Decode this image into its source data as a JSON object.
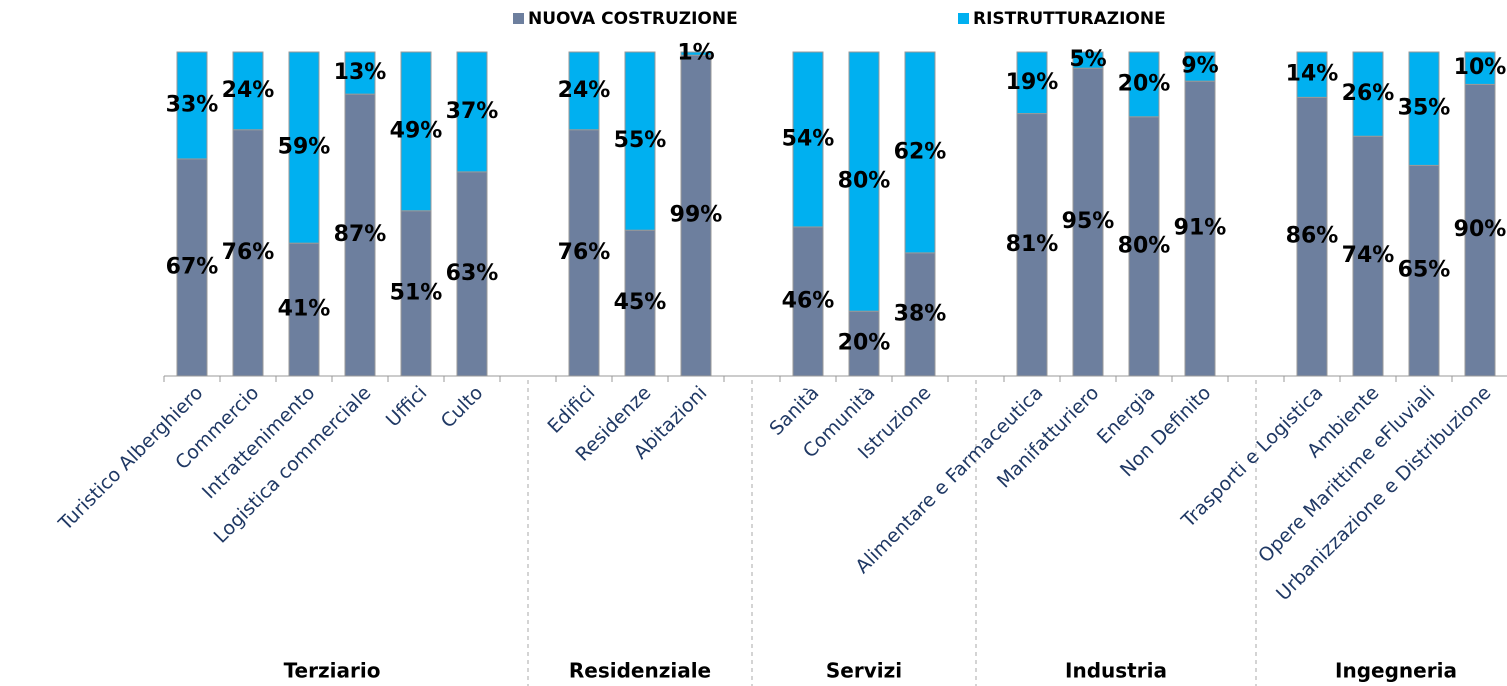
{
  "chart_data": {
    "type": "stacked_bar_100",
    "categories": [
      "Turistico Alberghiero",
      "Commercio",
      "Intrattenimento",
      "Logistica commerciale",
      "Uffici",
      "Culto",
      null,
      "Edifici",
      "Residenze",
      "Abitazioni",
      null,
      "Sanità",
      "Comunità",
      "Istruzione",
      null,
      "Alimentare e Farmaceutica",
      "Manifatturiero",
      "Energia",
      "Non Definito",
      null,
      "Trasporti e Logistica",
      "Ambiente",
      "Opere Marittime eFluviali",
      "Urbanizzazione e Distribuzione"
    ],
    "groups": [
      "Terziario",
      "Residenziale",
      "Servizi",
      "Industria",
      "Ingegneria"
    ],
    "ylim": [
      0,
      100
    ],
    "series": [
      {
        "name": "NUOVA COSTRUZIONE",
        "color": "#6d7f9e",
        "values": [
          67,
          76,
          41,
          87,
          51,
          63,
          null,
          76,
          45,
          99,
          null,
          46,
          20,
          38,
          null,
          81,
          95,
          80,
          91,
          null,
          86,
          74,
          65,
          90
        ],
        "value_labels": [
          "67%",
          "76%",
          "41%",
          "87%",
          "51%",
          "63%",
          null,
          "76%",
          "45%",
          "99%",
          null,
          "46%",
          "20%",
          "38%",
          null,
          "81%",
          "95%",
          "80%",
          "91%",
          null,
          "86%",
          "74%",
          "65%",
          "90%"
        ]
      },
      {
        "name": "RISTRUTTURAZIONE",
        "color": "#00b0f0",
        "values": [
          33,
          24,
          59,
          13,
          49,
          37,
          null,
          24,
          55,
          1,
          null,
          54,
          80,
          62,
          null,
          19,
          5,
          20,
          9,
          null,
          14,
          26,
          35,
          10
        ],
        "value_labels": [
          "33%",
          "24%",
          "59%",
          "13%",
          "49%",
          "37%",
          null,
          "24%",
          "55%",
          "1%",
          null,
          "54%",
          "80%",
          "62%",
          null,
          "19%",
          "5%",
          "20%",
          "9%",
          null,
          "14%",
          "26%",
          "35%",
          "10%"
        ]
      }
    ]
  }
}
